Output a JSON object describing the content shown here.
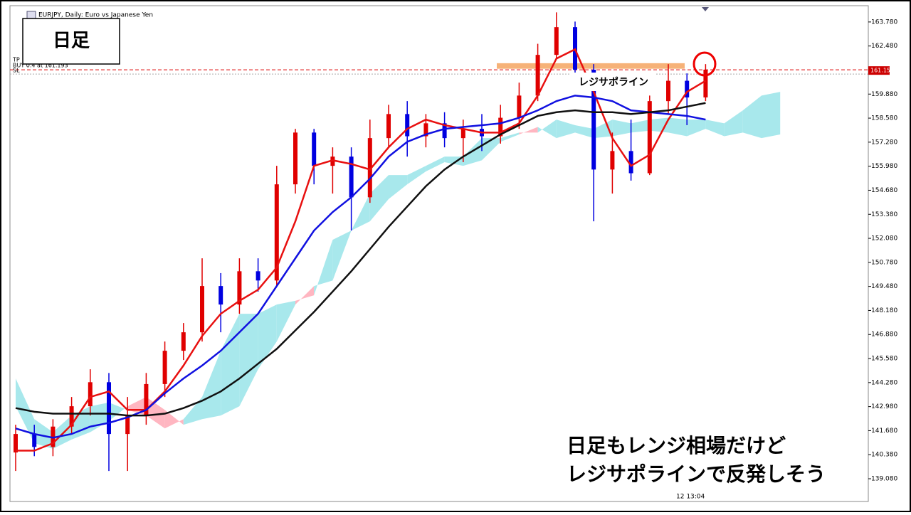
{
  "chart_data": {
    "type": "candlestick",
    "title": "EURJPY, Daily:  Euro vs Japanese Yen",
    "trade_labels": [
      "TP",
      "BUY 0.4 at 161.193",
      "SL"
    ],
    "box_label": "日足",
    "zone_label": "レジサポライン",
    "comment": [
      "日足もレンジ相場だけど",
      "レジサポラインで反発しそう"
    ],
    "time_label": "12 13:04",
    "up_color": "#e00000",
    "down_color": "#0000e0",
    "candles": {
      "open": [
        140.5,
        141.5,
        140.8,
        141.9,
        143,
        144.3,
        141.5,
        142.5,
        144.2,
        146,
        147,
        149.5,
        148.5,
        150.3,
        149.8,
        155,
        157.8,
        156,
        156.5,
        154.3,
        157.5,
        158.8,
        157.6,
        158.3,
        157.5,
        158,
        157.6,
        158.6,
        159.8,
        162,
        163.5,
        161.2,
        155.8,
        156.8,
        155.6,
        159.5,
        160.6,
        159.7
      ],
      "high": [
        142,
        142,
        142.3,
        143.5,
        145,
        144.8,
        143.5,
        144.8,
        146.5,
        147.5,
        151,
        150.2,
        151,
        151,
        156,
        158,
        158,
        157,
        157,
        158.5,
        159.3,
        159.5,
        158.8,
        158.9,
        158.5,
        158.8,
        159.3,
        160.5,
        162.6,
        164.3,
        163.8,
        161.5,
        157.8,
        158.5,
        159.8,
        161.5,
        161,
        161.5
      ],
      "low": [
        139.5,
        140.3,
        140.3,
        141.5,
        142.5,
        139.5,
        139.5,
        142,
        143.5,
        145.5,
        146.5,
        147,
        148,
        149.2,
        149.5,
        154.5,
        155,
        154.5,
        152.5,
        154,
        157,
        156.5,
        157,
        157,
        156.2,
        156.8,
        157.2,
        158,
        159.5,
        161.8,
        160.5,
        153,
        154.5,
        155.2,
        155.5,
        158.8,
        158.2,
        159.5
      ],
      "close": [
        141.5,
        140.8,
        141.9,
        143,
        144.3,
        141.5,
        142.5,
        144.2,
        146,
        147,
        149.5,
        148.5,
        150.3,
        149.8,
        155,
        157.8,
        156,
        156.5,
        154.3,
        157.5,
        158.8,
        157.6,
        158.3,
        157.5,
        158,
        157.6,
        158.6,
        159.8,
        162,
        163.5,
        161.2,
        155.8,
        156.8,
        155.6,
        159.5,
        160.6,
        159.7,
        161.2
      ]
    },
    "lines": [
      {
        "color": "#e81010",
        "values": [
          140.6,
          140.6,
          141,
          142,
          143.5,
          143.8,
          142.8,
          142.8,
          143.8,
          145.2,
          146.8,
          148,
          148.7,
          149.3,
          150.5,
          153,
          156,
          156.3,
          156.1,
          155.8,
          157,
          158,
          158.5,
          158.2,
          158,
          157.8,
          157.8,
          158.3,
          159.8,
          161.8,
          162.3,
          160,
          157.5,
          156,
          156.6,
          158.5,
          160,
          160.6
        ]
      },
      {
        "color": "#1010e0",
        "values": [
          141.8,
          141.5,
          141.3,
          141.5,
          141.9,
          142.1,
          142.4,
          142.8,
          143.7,
          144.5,
          145.2,
          146,
          147,
          148,
          149.5,
          151,
          152.5,
          153.5,
          154.3,
          155.3,
          156.5,
          157.3,
          157.7,
          158,
          158.1,
          158.2,
          158.3,
          158.6,
          159,
          159.5,
          159.8,
          159.7,
          159.5,
          159,
          158.9,
          158.8,
          158.7,
          158.5
        ]
      },
      {
        "color": "#101010",
        "values": [
          142.9,
          142.7,
          142.6,
          142.6,
          142.6,
          142.6,
          142.5,
          142.5,
          142.6,
          142.9,
          143.3,
          143.8,
          144.5,
          145.3,
          146.1,
          147.1,
          148.1,
          149.2,
          150.3,
          151.5,
          152.7,
          153.8,
          154.9,
          155.8,
          156.5,
          157.1,
          157.7,
          158.2,
          158.7,
          158.9,
          159,
          158.9,
          158.9,
          158.8,
          158.9,
          159,
          159.2,
          159.4
        ]
      }
    ],
    "cloud": {
      "up_color": "#ffb6c1",
      "down_color": "#a8e8ec",
      "span_a": [
        144.5,
        142.3,
        141.6,
        142.5,
        143,
        143.2,
        142.8,
        142.5,
        141.8,
        142.3,
        143.5,
        146,
        148,
        148,
        148.5,
        148.7,
        149,
        152,
        152.5,
        154.5,
        155.5,
        155.5,
        156,
        156.5,
        156.5,
        157.5,
        157.5,
        157.8,
        157.8,
        158.5,
        158.2,
        158,
        158.5,
        158.3,
        158.5,
        158.6,
        158.5,
        158.5,
        158.3,
        159,
        159.8,
        160
      ],
      "span_b": [
        143,
        141,
        140.7,
        141.2,
        141.6,
        142.2,
        143,
        143.5,
        142.8,
        142,
        142.3,
        142.5,
        143,
        145,
        146.5,
        148.5,
        149.5,
        149.8,
        152.5,
        153,
        154.2,
        155,
        155.7,
        156.2,
        156,
        156.3,
        157.3,
        157.7,
        158.1,
        157.5,
        157.8,
        157.5,
        157.6,
        157.8,
        157.9,
        157.8,
        157.6,
        158,
        157.6,
        157.8,
        157.5,
        157.7
      ]
    },
    "resistance_zone": [
      161.25,
      161.55
    ],
    "trade_price": 161.193,
    "current_price": {
      "value": 161.154,
      "label": "161.154"
    },
    "ylim": [
      137.85,
      164.66
    ],
    "yticks": [
      {
        "value": 163.78,
        "label": "163.780"
      },
      {
        "value": 162.48,
        "label": "162.480"
      },
      {
        "value": 159.88,
        "label": "159.880"
      },
      {
        "value": 158.58,
        "label": "158.580"
      },
      {
        "value": 157.28,
        "label": "157.280"
      },
      {
        "value": 155.98,
        "label": "155.980"
      },
      {
        "value": 154.68,
        "label": "154.680"
      },
      {
        "value": 153.38,
        "label": "153.380"
      },
      {
        "value": 152.08,
        "label": "152.080"
      },
      {
        "value": 150.78,
        "label": "150.780"
      },
      {
        "value": 149.48,
        "label": "149.480"
      },
      {
        "value": 148.18,
        "label": "148.180"
      },
      {
        "value": 146.88,
        "label": "146.880"
      },
      {
        "value": 145.58,
        "label": "145.580"
      },
      {
        "value": 144.28,
        "label": "144.280"
      },
      {
        "value": 142.98,
        "label": "142.980"
      },
      {
        "value": 141.68,
        "label": "141.680"
      },
      {
        "value": 140.38,
        "label": "140.380"
      },
      {
        "value": 139.08,
        "label": "139.080"
      }
    ]
  }
}
